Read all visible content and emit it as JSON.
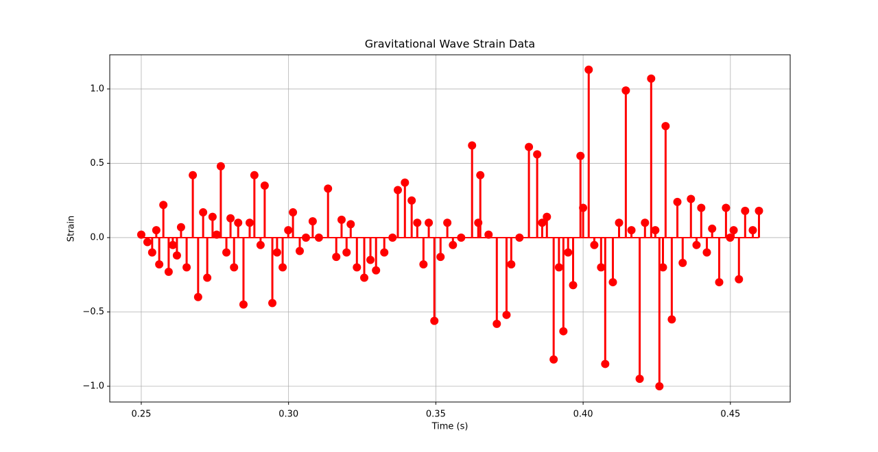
{
  "chart_data": {
    "type": "stem",
    "title": "Gravitational Wave Strain Data",
    "x_label": "Time (s)",
    "y_label": "Strain",
    "color": "#ff0000",
    "grid": true,
    "xlim": [
      0.2393,
      0.4703
    ],
    "ylim": [
      -1.106,
      1.23
    ],
    "xticks": [
      0.25,
      {
        "value": 0.3,
        "label": "0.30"
      },
      {
        "value": 0.35,
        "label": "0.35"
      },
      {
        "value": 0.4,
        "label": "0.40"
      },
      0.45
    ],
    "yticks": [
      {
        "value": -1,
        "label": "−1.0"
      },
      {
        "value": -0.5,
        "label": "−0.5"
      },
      {
        "value": 0,
        "label": "0.0"
      },
      {
        "value": 0.5,
        "label": "0.5"
      },
      {
        "value": 1,
        "label": "1.0"
      }
    ],
    "x": [
      0.25,
      0.2521,
      0.2537,
      0.2551,
      0.2561,
      0.2575,
      0.2593,
      0.2607,
      0.2621,
      0.2635,
      0.2654,
      0.2675,
      0.2693,
      0.271,
      0.2724,
      0.2742,
      0.2756,
      0.277,
      0.2789,
      0.2803,
      0.2815,
      0.2829,
      0.2847,
      0.2868,
      0.2884,
      0.2905,
      0.2919,
      0.2945,
      0.2961,
      0.298,
      0.2999,
      0.3015,
      0.3038,
      0.3059,
      0.3082,
      0.3103,
      0.3134,
      0.3162,
      0.318,
      0.3197,
      0.3211,
      0.3232,
      0.3257,
      0.3278,
      0.3297,
      0.3325,
      0.3353,
      0.3371,
      0.3395,
      0.3418,
      0.3437,
      0.3458,
      0.3476,
      0.3495,
      0.3516,
      0.3539,
      0.3558,
      0.3586,
      0.3623,
      0.3644,
      0.3651,
      0.3679,
      0.3707,
      0.374,
      0.3756,
      0.3784,
      0.3816,
      0.3844,
      0.3861,
      0.3877,
      0.39,
      0.3918,
      0.3933,
      0.3949,
      0.3966,
      0.3991,
      0.4,
      0.4019,
      0.4038,
      0.4061,
      0.4075,
      0.4101,
      0.4122,
      0.4145,
      0.4164,
      0.4192,
      0.421,
      0.4231,
      0.4245,
      0.4259,
      0.4271,
      0.428,
      0.4301,
      0.432,
      0.4338,
      0.4366,
      0.4385,
      0.4401,
      0.442,
      0.4438,
      0.4462,
      0.4485,
      0.4499,
      0.4511,
      0.4529,
      0.455,
      0.4576,
      0.4597
    ],
    "values": [
      0.02,
      -0.03,
      -0.1,
      0.05,
      -0.18,
      0.22,
      -0.23,
      -0.05,
      -0.12,
      0.07,
      -0.2,
      0.42,
      -0.4,
      0.17,
      -0.27,
      0.14,
      0.02,
      0.48,
      -0.1,
      0.13,
      -0.2,
      0.1,
      -0.45,
      0.1,
      0.42,
      -0.05,
      0.35,
      -0.44,
      -0.1,
      -0.2,
      0.05,
      0.17,
      -0.09,
      0.0,
      0.11,
      0.0,
      0.33,
      -0.13,
      0.12,
      -0.1,
      0.09,
      -0.2,
      -0.27,
      -0.15,
      -0.22,
      -0.1,
      0.0,
      0.32,
      0.37,
      0.25,
      0.1,
      -0.18,
      0.1,
      -0.56,
      -0.13,
      0.1,
      -0.05,
      0.0,
      0.62,
      0.1,
      0.42,
      0.02,
      -0.58,
      -0.52,
      -0.18,
      0.0,
      0.61,
      0.56,
      0.1,
      0.14,
      -0.82,
      -0.2,
      -0.63,
      -0.1,
      -0.32,
      0.55,
      0.2,
      1.13,
      -0.05,
      -0.2,
      -0.85,
      -0.3,
      0.1,
      0.99,
      0.05,
      -0.95,
      0.1,
      1.07,
      0.05,
      -1.0,
      -0.2,
      0.75,
      -0.55,
      0.24,
      -0.17,
      0.26,
      -0.05,
      0.2,
      -0.1,
      0.06,
      -0.3,
      0.2,
      0.0,
      0.05,
      -0.28,
      0.18,
      0.05,
      0.18
    ]
  }
}
